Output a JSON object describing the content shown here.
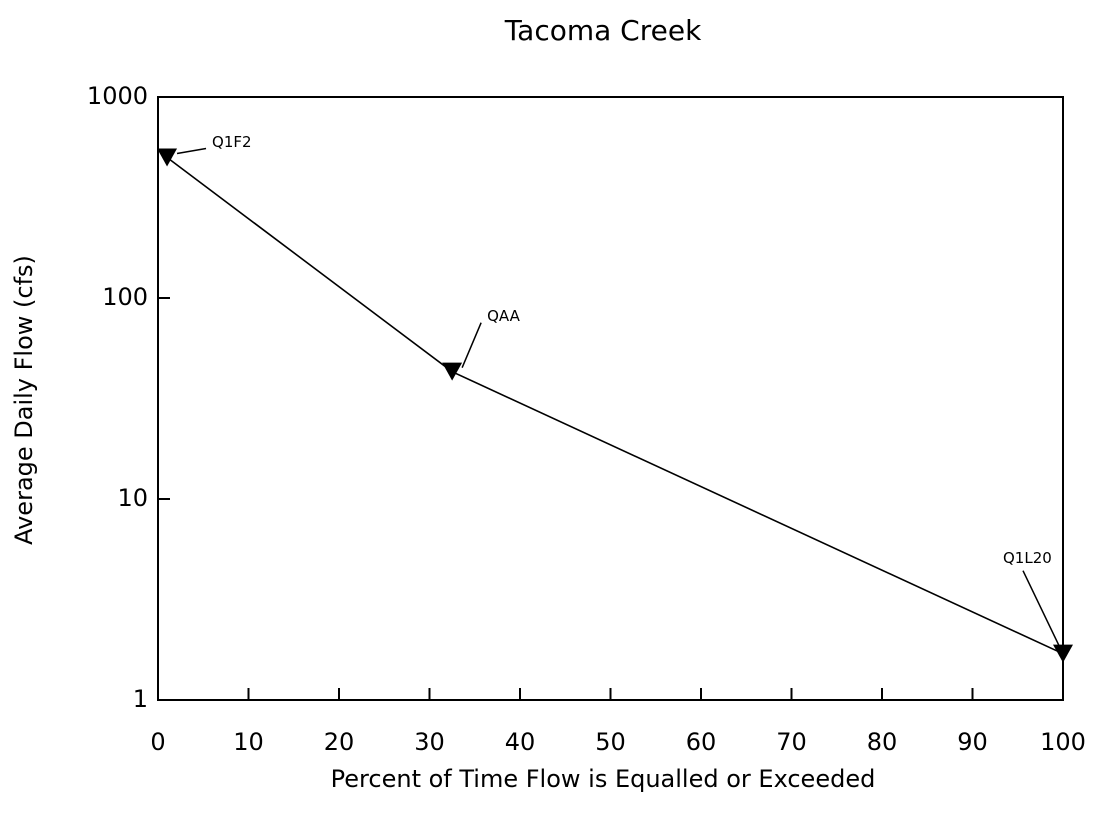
{
  "chart_data": {
    "type": "line",
    "title": "Tacoma Creek",
    "x_label": "Percent of Time Flow is Equalled or Exceeded",
    "y_label": "Average Daily Flow (cfs)",
    "x": [
      1,
      32.5,
      100
    ],
    "series": [
      {
        "values": [
          500,
          43,
          1.7
        ],
        "color": "#000000",
        "point_labels": [
          "Q1F2",
          "QAA",
          "Q1L20"
        ]
      }
    ],
    "xlim": [
      0,
      100
    ],
    "xticks": [
      0,
      10,
      20,
      30,
      40,
      50,
      60,
      70,
      80,
      90,
      100
    ],
    "ylim": [
      1,
      1000
    ],
    "yticks": [
      1,
      10,
      100,
      1000
    ],
    "y_scale": "log",
    "grid": false
  }
}
